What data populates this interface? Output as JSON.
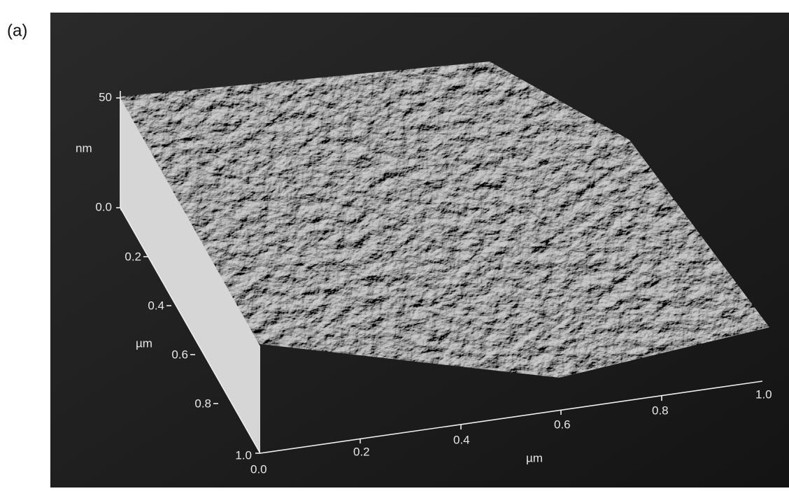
{
  "panel_label": "(a)",
  "z_axis": {
    "ticks": [
      "50",
      "0.0"
    ],
    "unit": "nm"
  },
  "y_axis": {
    "ticks": [
      "0.2",
      "0.4",
      "0.6",
      "0.8",
      "1.0"
    ],
    "unit": "µm"
  },
  "x_axis": {
    "ticks": [
      "0.0",
      "0.2",
      "0.4",
      "0.6",
      "0.8",
      "1.0"
    ],
    "unit": "µm"
  }
}
